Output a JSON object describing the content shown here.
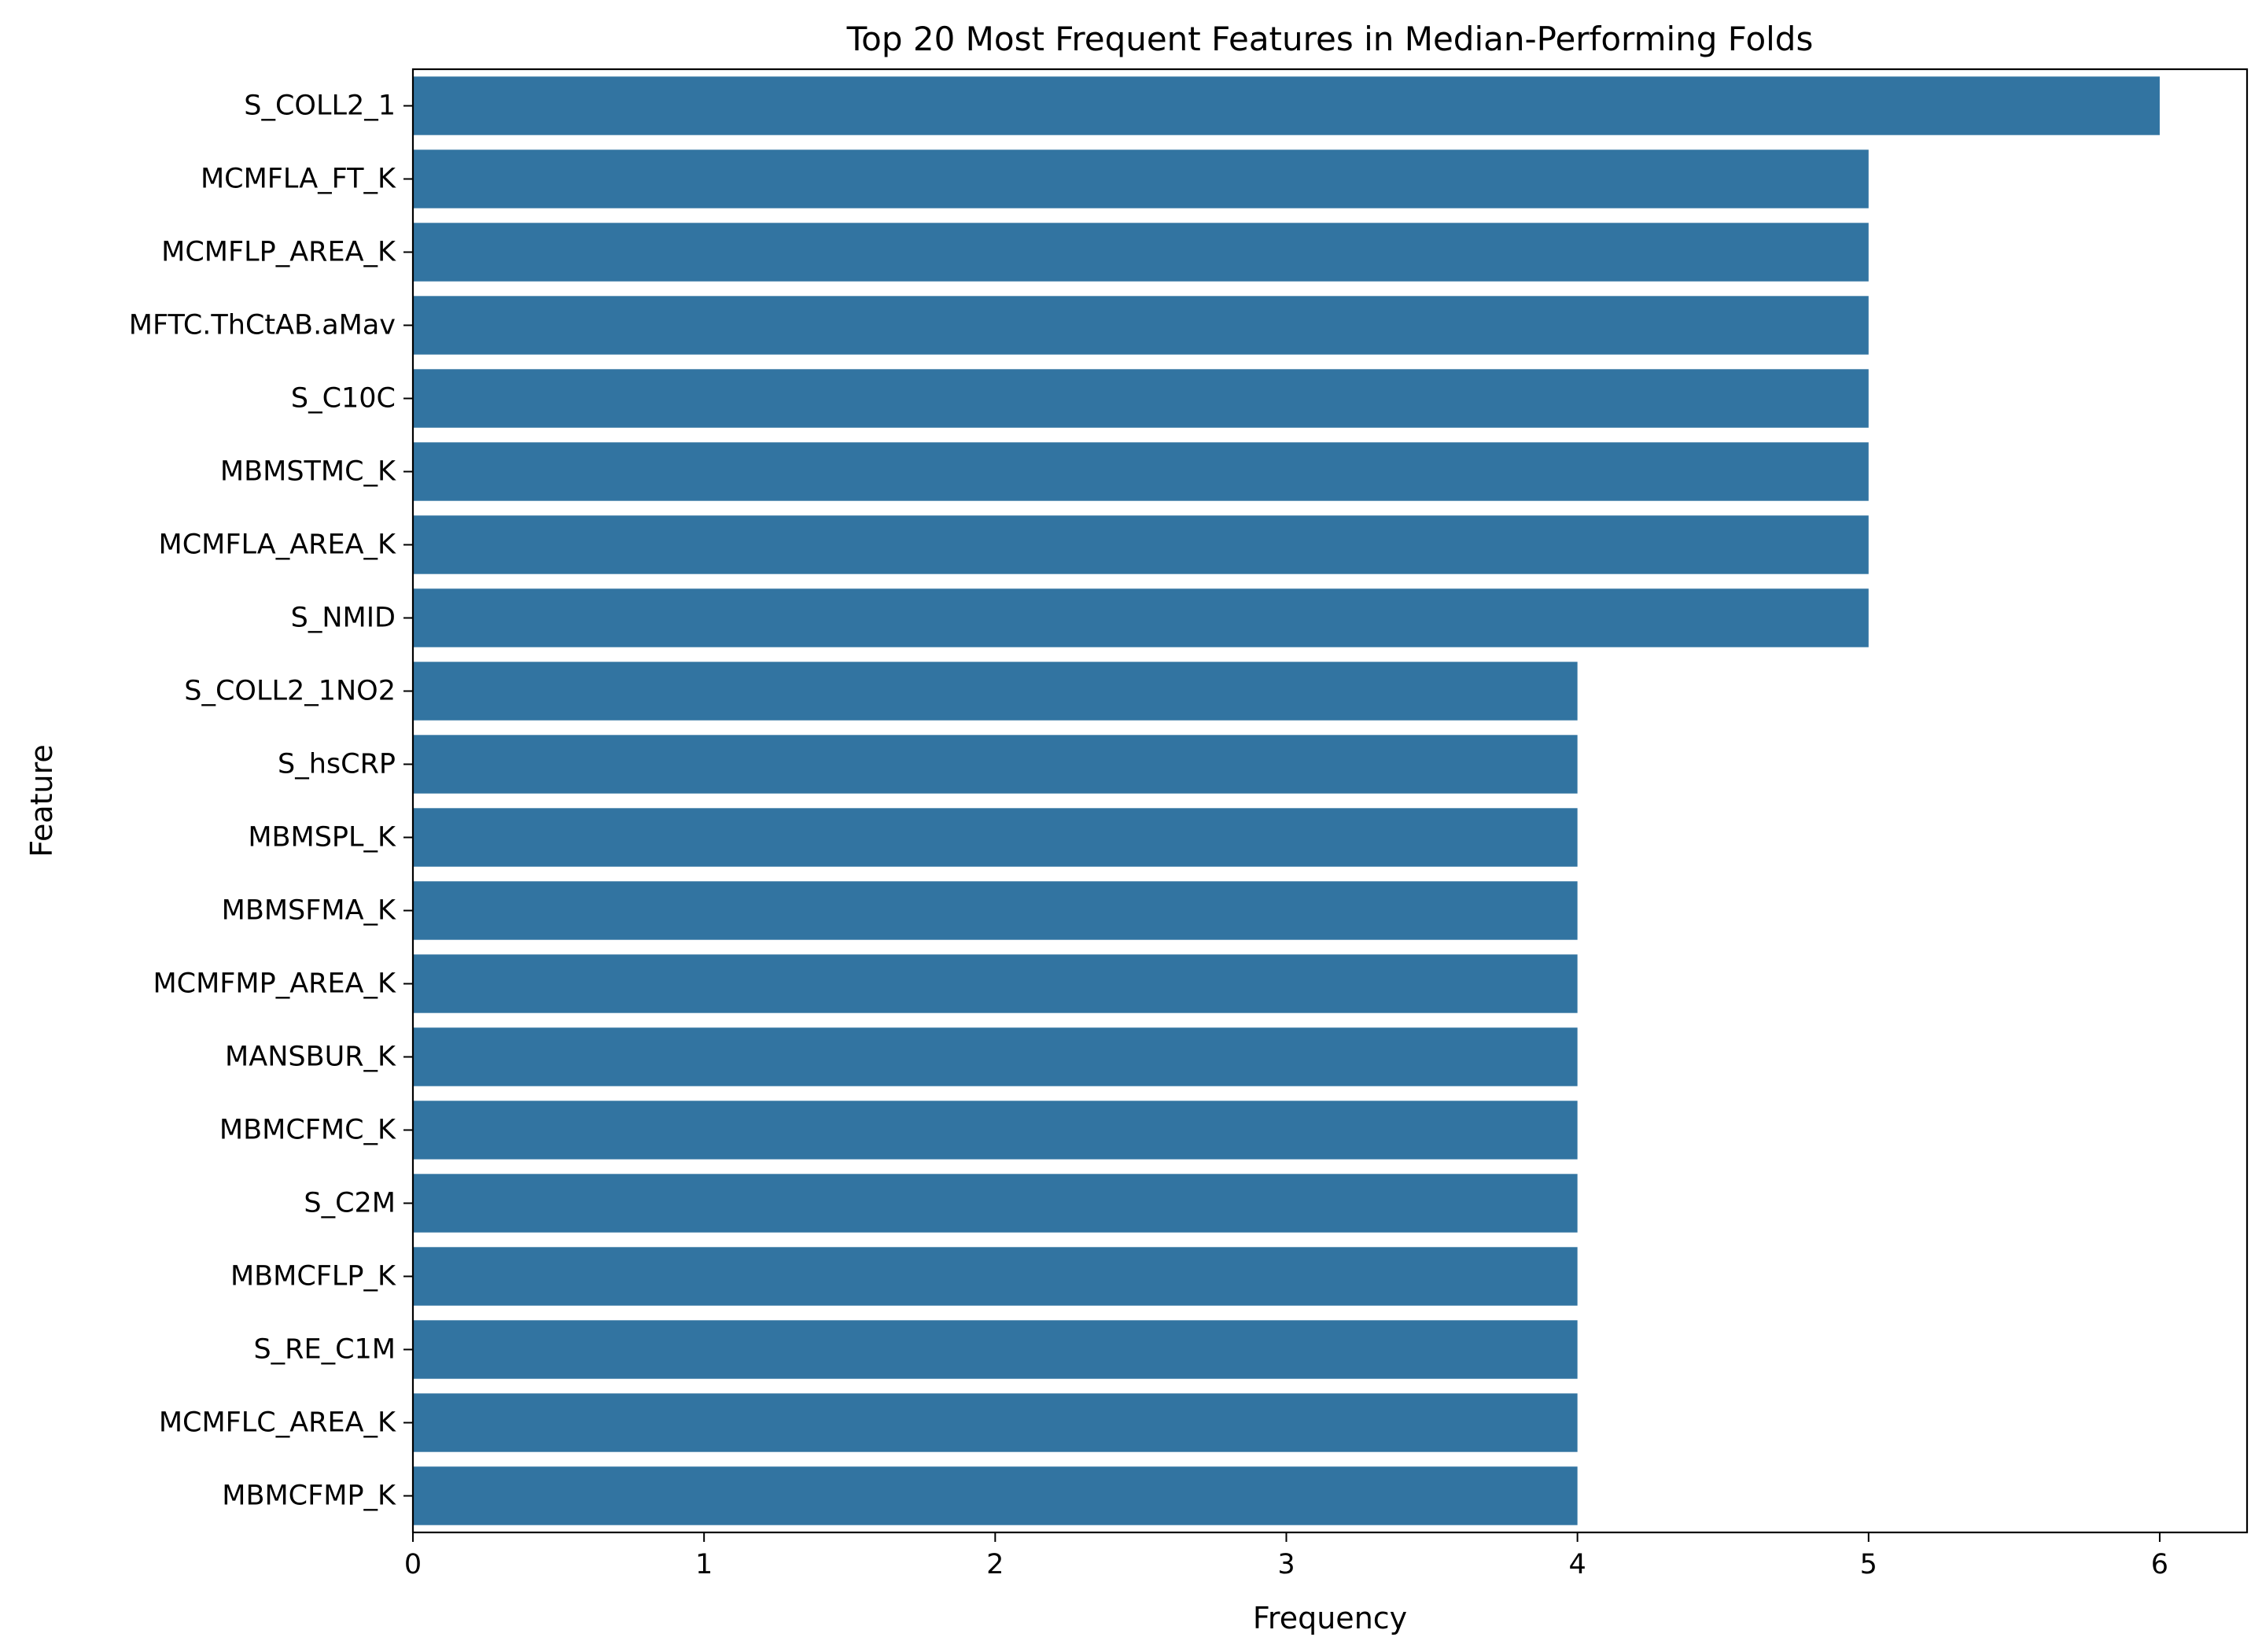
{
  "chart_data": {
    "type": "bar",
    "orientation": "horizontal",
    "title": "Top 20 Most Frequent Features in Median-Performing Folds",
    "xlabel": "Frequency",
    "ylabel": "Feature",
    "xlim": [
      0,
      6.3
    ],
    "xticks": [
      "0",
      "1",
      "2",
      "3",
      "4",
      "5",
      "6"
    ],
    "grid": false,
    "bar_color": "#3274a1",
    "categories": [
      "S_COLL2_1",
      "MCMFLA_FT_K",
      "MCMFLP_AREA_K",
      "MFTC.ThCtAB.aMav",
      "S_C10C",
      "MBMSTMC_K",
      "MCMFLA_AREA_K",
      "S_NMID",
      "S_COLL2_1NO2",
      "S_hsCRP",
      "MBMSPL_K",
      "MBMSFMA_K",
      "MCMFMP_AREA_K",
      "MANSBUR_K",
      "MBMCFMC_K",
      "S_C2M",
      "MBMCFLP_K",
      "S_RE_C1M",
      "MCMFLC_AREA_K",
      "MBMCFMP_K"
    ],
    "values": [
      6,
      5,
      5,
      5,
      5,
      5,
      5,
      5,
      4,
      4,
      4,
      4,
      4,
      4,
      4,
      4,
      4,
      4,
      4,
      4
    ]
  }
}
